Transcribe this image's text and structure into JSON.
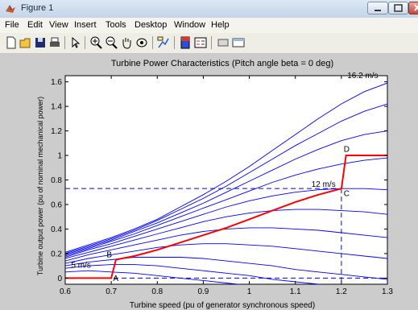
{
  "window": {
    "title": "Figure 1"
  },
  "menu": [
    "File",
    "Edit",
    "View",
    "Insert",
    "Tools",
    "Desktop",
    "Window",
    "Help"
  ],
  "toolbar": {
    "icons": [
      "new-figure-icon",
      "open-file-icon",
      "save-icon",
      "print-icon",
      "edit-plot-arrow-icon",
      "zoom-in-icon",
      "zoom-out-icon",
      "pan-hand-icon",
      "rotate-3d-icon",
      "data-cursor-icon",
      "colorbar-icon",
      "legend-icon",
      "hide-plot-tools-icon",
      "show-plot-tools-icon"
    ]
  },
  "colors": {
    "curve": "#0000ff",
    "operating_curve": "#ff0000",
    "axes_bg": "#ffffff",
    "figure_bg": "#cccccc"
  },
  "chart_data": {
    "type": "line",
    "title": "Turbine Power Characteristics (Pitch angle beta = 0 deg)",
    "xlabel": "Turbine speed (pu of generator synchronous speed)",
    "ylabel": "Turbine output power (pu of nominal mechanical power)",
    "xlim": [
      0.6,
      1.3
    ],
    "ylim": [
      -0.05,
      1.65
    ],
    "xticks": [
      0.6,
      0.7,
      0.8,
      0.9,
      1.0,
      1.1,
      1.2,
      1.3
    ],
    "xtick_labels": [
      "0.6",
      "0.7",
      "0.8",
      "0.9",
      "1",
      "1.1",
      "1.2",
      "1.3"
    ],
    "yticks": [
      0,
      0.2,
      0.4,
      0.6,
      0.8,
      1.0,
      1.2,
      1.4,
      1.6
    ],
    "ytick_labels": [
      "0",
      "0.2",
      "0.4",
      "0.6",
      "0.8",
      "1",
      "1.2",
      "1.4",
      "1.6"
    ],
    "grid": false,
    "wind_curves": {
      "x": [
        0.6,
        0.65,
        0.7,
        0.75,
        0.8,
        0.85,
        0.9,
        0.95,
        1.0,
        1.05,
        1.1,
        1.15,
        1.2,
        1.25,
        1.3
      ],
      "series": [
        {
          "values": [
            0.05,
            0.06,
            0.05,
            0.04,
            0.02,
            0.0,
            -0.02,
            -0.04,
            -0.06,
            -0.08,
            -0.1,
            -0.12,
            -0.14,
            -0.16,
            -0.18
          ]
        },
        {
          "values": [
            0.08,
            0.1,
            0.11,
            0.11,
            0.1,
            0.08,
            0.06,
            0.04,
            0.02,
            -0.01,
            -0.03,
            -0.05,
            -0.07,
            -0.09,
            -0.11
          ]
        },
        {
          "values": [
            0.1,
            0.13,
            0.15,
            0.17,
            0.17,
            0.17,
            0.16,
            0.14,
            0.12,
            0.1,
            0.07,
            0.05,
            0.03,
            0.01,
            -0.01
          ]
        },
        {
          "values": [
            0.12,
            0.16,
            0.19,
            0.22,
            0.25,
            0.27,
            0.28,
            0.28,
            0.27,
            0.26,
            0.24,
            0.22,
            0.2,
            0.18,
            0.16
          ]
        },
        {
          "values": [
            0.14,
            0.19,
            0.23,
            0.27,
            0.31,
            0.35,
            0.38,
            0.4,
            0.41,
            0.41,
            0.4,
            0.39,
            0.37,
            0.35,
            0.33
          ]
        },
        {
          "values": [
            0.16,
            0.21,
            0.26,
            0.31,
            0.36,
            0.41,
            0.46,
            0.5,
            0.53,
            0.55,
            0.56,
            0.56,
            0.55,
            0.54,
            0.52
          ]
        },
        {
          "values": [
            0.17,
            0.23,
            0.28,
            0.34,
            0.4,
            0.46,
            0.52,
            0.58,
            0.63,
            0.67,
            0.7,
            0.72,
            0.73,
            0.73,
            0.72
          ]
        },
        {
          "values": [
            0.18,
            0.24,
            0.3,
            0.36,
            0.43,
            0.5,
            0.57,
            0.64,
            0.71,
            0.78,
            0.84,
            0.89,
            0.93,
            0.96,
            0.98
          ]
        },
        {
          "values": [
            0.19,
            0.25,
            0.31,
            0.38,
            0.45,
            0.53,
            0.61,
            0.7,
            0.79,
            0.88,
            0.97,
            1.05,
            1.12,
            1.17,
            1.2
          ]
        },
        {
          "values": [
            0.2,
            0.26,
            0.32,
            0.39,
            0.47,
            0.56,
            0.65,
            0.75,
            0.86,
            0.97,
            1.08,
            1.18,
            1.28,
            1.36,
            1.42
          ]
        },
        {
          "values": [
            0.21,
            0.27,
            0.33,
            0.4,
            0.48,
            0.58,
            0.68,
            0.79,
            0.91,
            1.04,
            1.17,
            1.3,
            1.42,
            1.52,
            1.59
          ]
        }
      ]
    },
    "operating_curve": {
      "x": [
        0.6,
        0.7,
        0.71,
        0.75,
        0.8,
        0.85,
        0.9,
        0.95,
        1.0,
        1.05,
        1.1,
        1.15,
        1.2,
        1.21,
        1.3
      ],
      "y": [
        0.0,
        0.0,
        0.15,
        0.18,
        0.23,
        0.29,
        0.35,
        0.41,
        0.48,
        0.55,
        0.62,
        0.68,
        0.73,
        1.0,
        1.0
      ]
    },
    "reference_lines": [
      {
        "orientation": "horizontal",
        "y": 0.0
      },
      {
        "orientation": "horizontal",
        "y": 0.73
      },
      {
        "orientation": "vertical",
        "x": 1.2
      }
    ],
    "annotations": [
      {
        "text": "16.2 m/s",
        "x": 1.28,
        "y": 1.63
      },
      {
        "text": "12 m/s",
        "x": 1.135,
        "y": 0.745
      },
      {
        "text": "5 m/s",
        "x": 0.613,
        "y": 0.085
      },
      {
        "text": "D",
        "x": 1.205,
        "y": 1.03
      },
      {
        "text": "C",
        "x": 1.205,
        "y": 0.67
      },
      {
        "text": "B",
        "x": 0.69,
        "y": 0.17
      },
      {
        "text": "A",
        "x": 0.704,
        "y": -0.025
      }
    ]
  }
}
